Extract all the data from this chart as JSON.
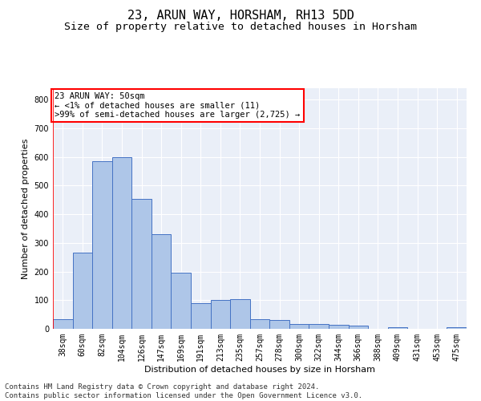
{
  "title1": "23, ARUN WAY, HORSHAM, RH13 5DD",
  "title2": "Size of property relative to detached houses in Horsham",
  "xlabel": "Distribution of detached houses by size in Horsham",
  "ylabel": "Number of detached properties",
  "categories": [
    "38sqm",
    "60sqm",
    "82sqm",
    "104sqm",
    "126sqm",
    "147sqm",
    "169sqm",
    "191sqm",
    "213sqm",
    "235sqm",
    "257sqm",
    "278sqm",
    "300sqm",
    "322sqm",
    "344sqm",
    "366sqm",
    "388sqm",
    "409sqm",
    "431sqm",
    "453sqm",
    "475sqm"
  ],
  "values": [
    35,
    265,
    585,
    600,
    455,
    330,
    195,
    90,
    102,
    105,
    35,
    32,
    18,
    18,
    15,
    11,
    0,
    7,
    0,
    0,
    7
  ],
  "bar_color": "#aec6e8",
  "bar_edge_color": "#4472c4",
  "annotation_box_text": "23 ARUN WAY: 50sqm\n← <1% of detached houses are smaller (11)\n>99% of semi-detached houses are larger (2,725) →",
  "footnote": "Contains HM Land Registry data © Crown copyright and database right 2024.\nContains public sector information licensed under the Open Government Licence v3.0.",
  "ylim": [
    0,
    840
  ],
  "yticks": [
    0,
    100,
    200,
    300,
    400,
    500,
    600,
    700,
    800
  ],
  "background_color": "#eaeff8",
  "grid_color": "#ffffff",
  "title1_fontsize": 11,
  "title2_fontsize": 9.5,
  "axis_label_fontsize": 8,
  "tick_fontsize": 7,
  "footnote_fontsize": 6.5,
  "annotation_fontsize": 7.5
}
